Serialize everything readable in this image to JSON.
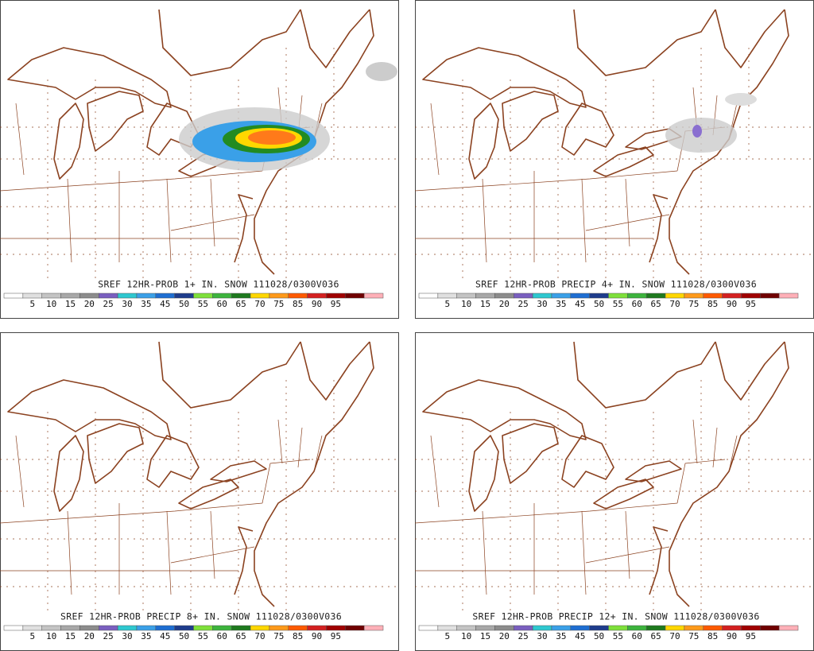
{
  "panels": [
    {
      "title": "SREF 12HR-PROB 1+ IN. SNOW 111028/0300V036"
    },
    {
      "title": "SREF 12HR-PROB PRECIP 4+ IN. SNOW 111028/0300V036"
    },
    {
      "title": "SREF 12HR-PROB PRECIP 8+ IN. SNOW 111028/0300V036"
    },
    {
      "title": "SREF 12HR-PROB PRECIP 12+ IN. SNOW 111028/0300V036"
    }
  ],
  "legend": {
    "labels": [
      "5",
      "10",
      "15",
      "20",
      "25",
      "30",
      "35",
      "45",
      "50",
      "55",
      "60",
      "65",
      "70",
      "75",
      "85",
      "90",
      "95"
    ],
    "colors": [
      "#ffffff",
      "#e0e0e0",
      "#c4c4c4",
      "#a8a8a8",
      "#8c8c8c",
      "#7a5fc0",
      "#2ec8d0",
      "#3aa0e8",
      "#1e6ed2",
      "#1e3c8c",
      "#7ee03a",
      "#3cb43c",
      "#1e7a1e",
      "#ffd700",
      "#ff9a1a",
      "#ff5a00",
      "#d42020",
      "#a00000",
      "#700000",
      "#ffb0b8"
    ]
  }
}
